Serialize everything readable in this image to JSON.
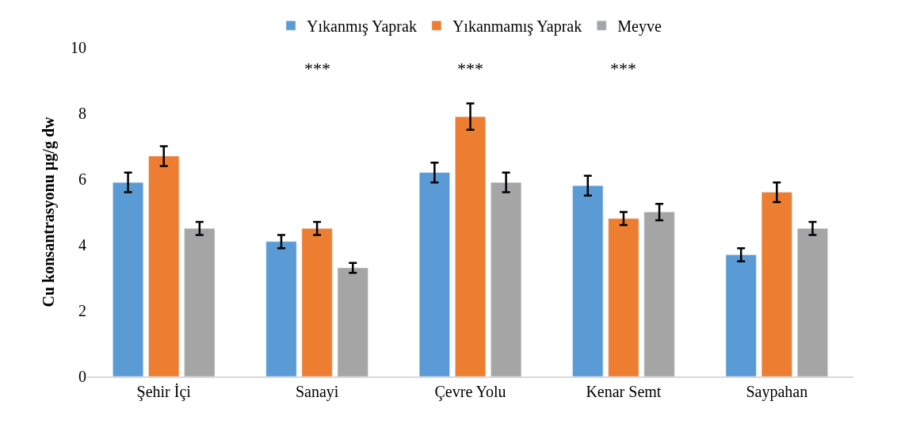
{
  "chart_data": {
    "type": "bar",
    "ylabel": "Cu konsantrasyonu µg/g dw",
    "categories": [
      "Şehir İçi",
      "Sanayi",
      "Çevre Yolu",
      "Kenar Semt",
      "Saypahan"
    ],
    "series": [
      {
        "name": "Yıkanmış Yaprak",
        "color": "#5b9bd5",
        "values": [
          5.9,
          4.1,
          6.2,
          5.8,
          3.7
        ],
        "errors": [
          0.3,
          0.2,
          0.3,
          0.3,
          0.2
        ]
      },
      {
        "name": "Yıkanmamış Yaprak",
        "color": "#ed7d31",
        "values": [
          6.7,
          4.5,
          7.9,
          4.8,
          5.6
        ],
        "errors": [
          0.3,
          0.2,
          0.4,
          0.2,
          0.3
        ]
      },
      {
        "name": "Meyve",
        "color": "#a5a5a5",
        "values": [
          4.5,
          3.3,
          5.9,
          5.0,
          4.5
        ],
        "errors": [
          0.2,
          0.15,
          0.3,
          0.25,
          0.2
        ]
      }
    ],
    "ylim": [
      0,
      10
    ],
    "yticks": [
      0,
      2,
      4,
      6,
      8,
      10
    ],
    "grid": false,
    "legend": "top",
    "annotations": [
      "***",
      "***",
      "***"
    ]
  }
}
